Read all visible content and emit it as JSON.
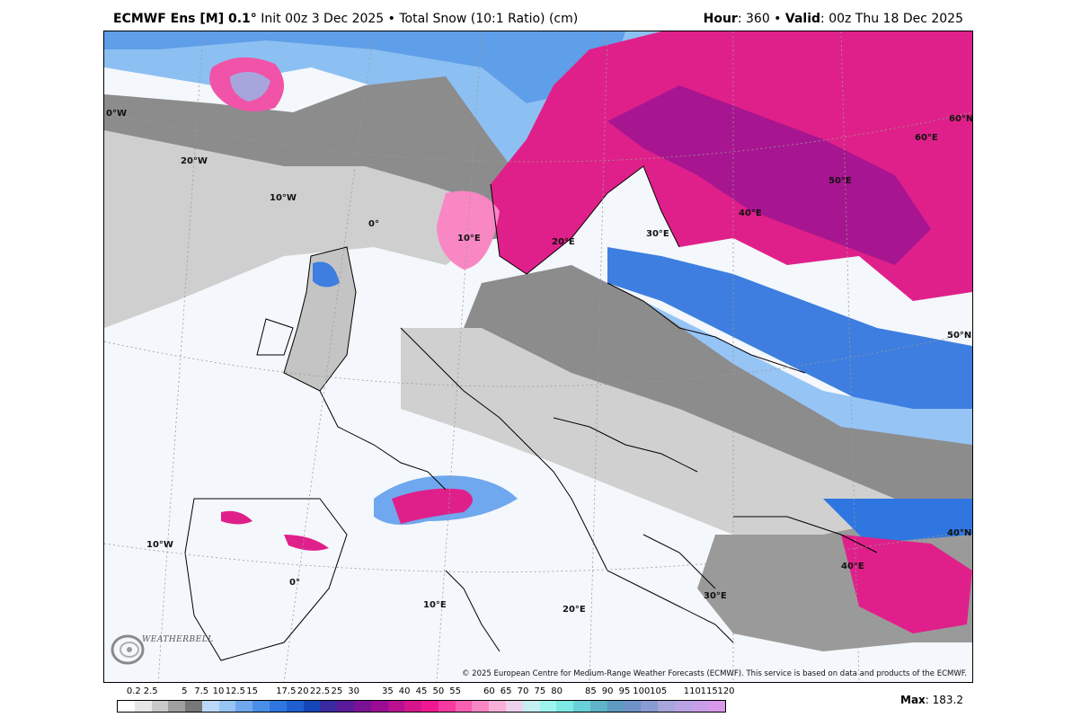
{
  "header": {
    "model": "ECMWF Ens [M] 0.1",
    "degree": "°",
    "init": " Init 00z 3 Dec 2025 • Total Snow (10:1 Ratio) (cm)",
    "hour_label": "Hour",
    "hour_value": ": 360 • ",
    "valid_label": "Valid",
    "valid_value": ": 00z Thu 18 Dec 2025"
  },
  "map": {
    "graticule_labels": [
      "0°W",
      "20°W",
      "10°W",
      "0°",
      "10°E",
      "20°E",
      "30°E",
      "40°E",
      "50°E",
      "60°E",
      "60°N",
      "50°N",
      "10°W",
      "0°",
      "10°E",
      "20°E",
      "30°E",
      "40°E",
      "40°N"
    ],
    "copyright": "© 2025 European Centre for Medium-Range Weather Forecasts (ECMWF). This service is based on data and products of the ECMWF.",
    "logo_text": "WEATHERBELL",
    "logo_icon": "weatherbell-swirl-icon"
  },
  "legend": {
    "labels": [
      "0.2",
      "2.5",
      "5",
      "7.5",
      "10",
      "12.5",
      "15",
      "17.5",
      "20",
      "22.5",
      "25",
      "30",
      "35",
      "40",
      "45",
      "50",
      "55",
      "60",
      "65",
      "70",
      "75",
      "80",
      "85",
      "90",
      "95",
      "100",
      "105",
      "110",
      "115",
      "120"
    ],
    "colors": [
      "#ffffff",
      "#e6e6e6",
      "#c8c8c8",
      "#a0a0a0",
      "#787878",
      "#bcd8f8",
      "#96c4f5",
      "#6fa8ee",
      "#4b8ee8",
      "#2f76e0",
      "#1f5fd0",
      "#1546b8",
      "#3a2aa0",
      "#5a1a9a",
      "#7a1296",
      "#9a0c92",
      "#b8108e",
      "#d6148c",
      "#f01890",
      "#f53aa0",
      "#f860b2",
      "#f987c4",
      "#f9b0d8",
      "#ecd2ec",
      "#c7eef0",
      "#9ef5ef",
      "#7de8e4",
      "#68d0d6",
      "#5fb4c8",
      "#5f9ac0",
      "#7092c8",
      "#8a9ad2",
      "#a6a6dc",
      "#b9a3e4",
      "#c99ee8",
      "#d89ae8"
    ]
  },
  "max": {
    "label": "Max",
    "value": ": 183.2"
  }
}
